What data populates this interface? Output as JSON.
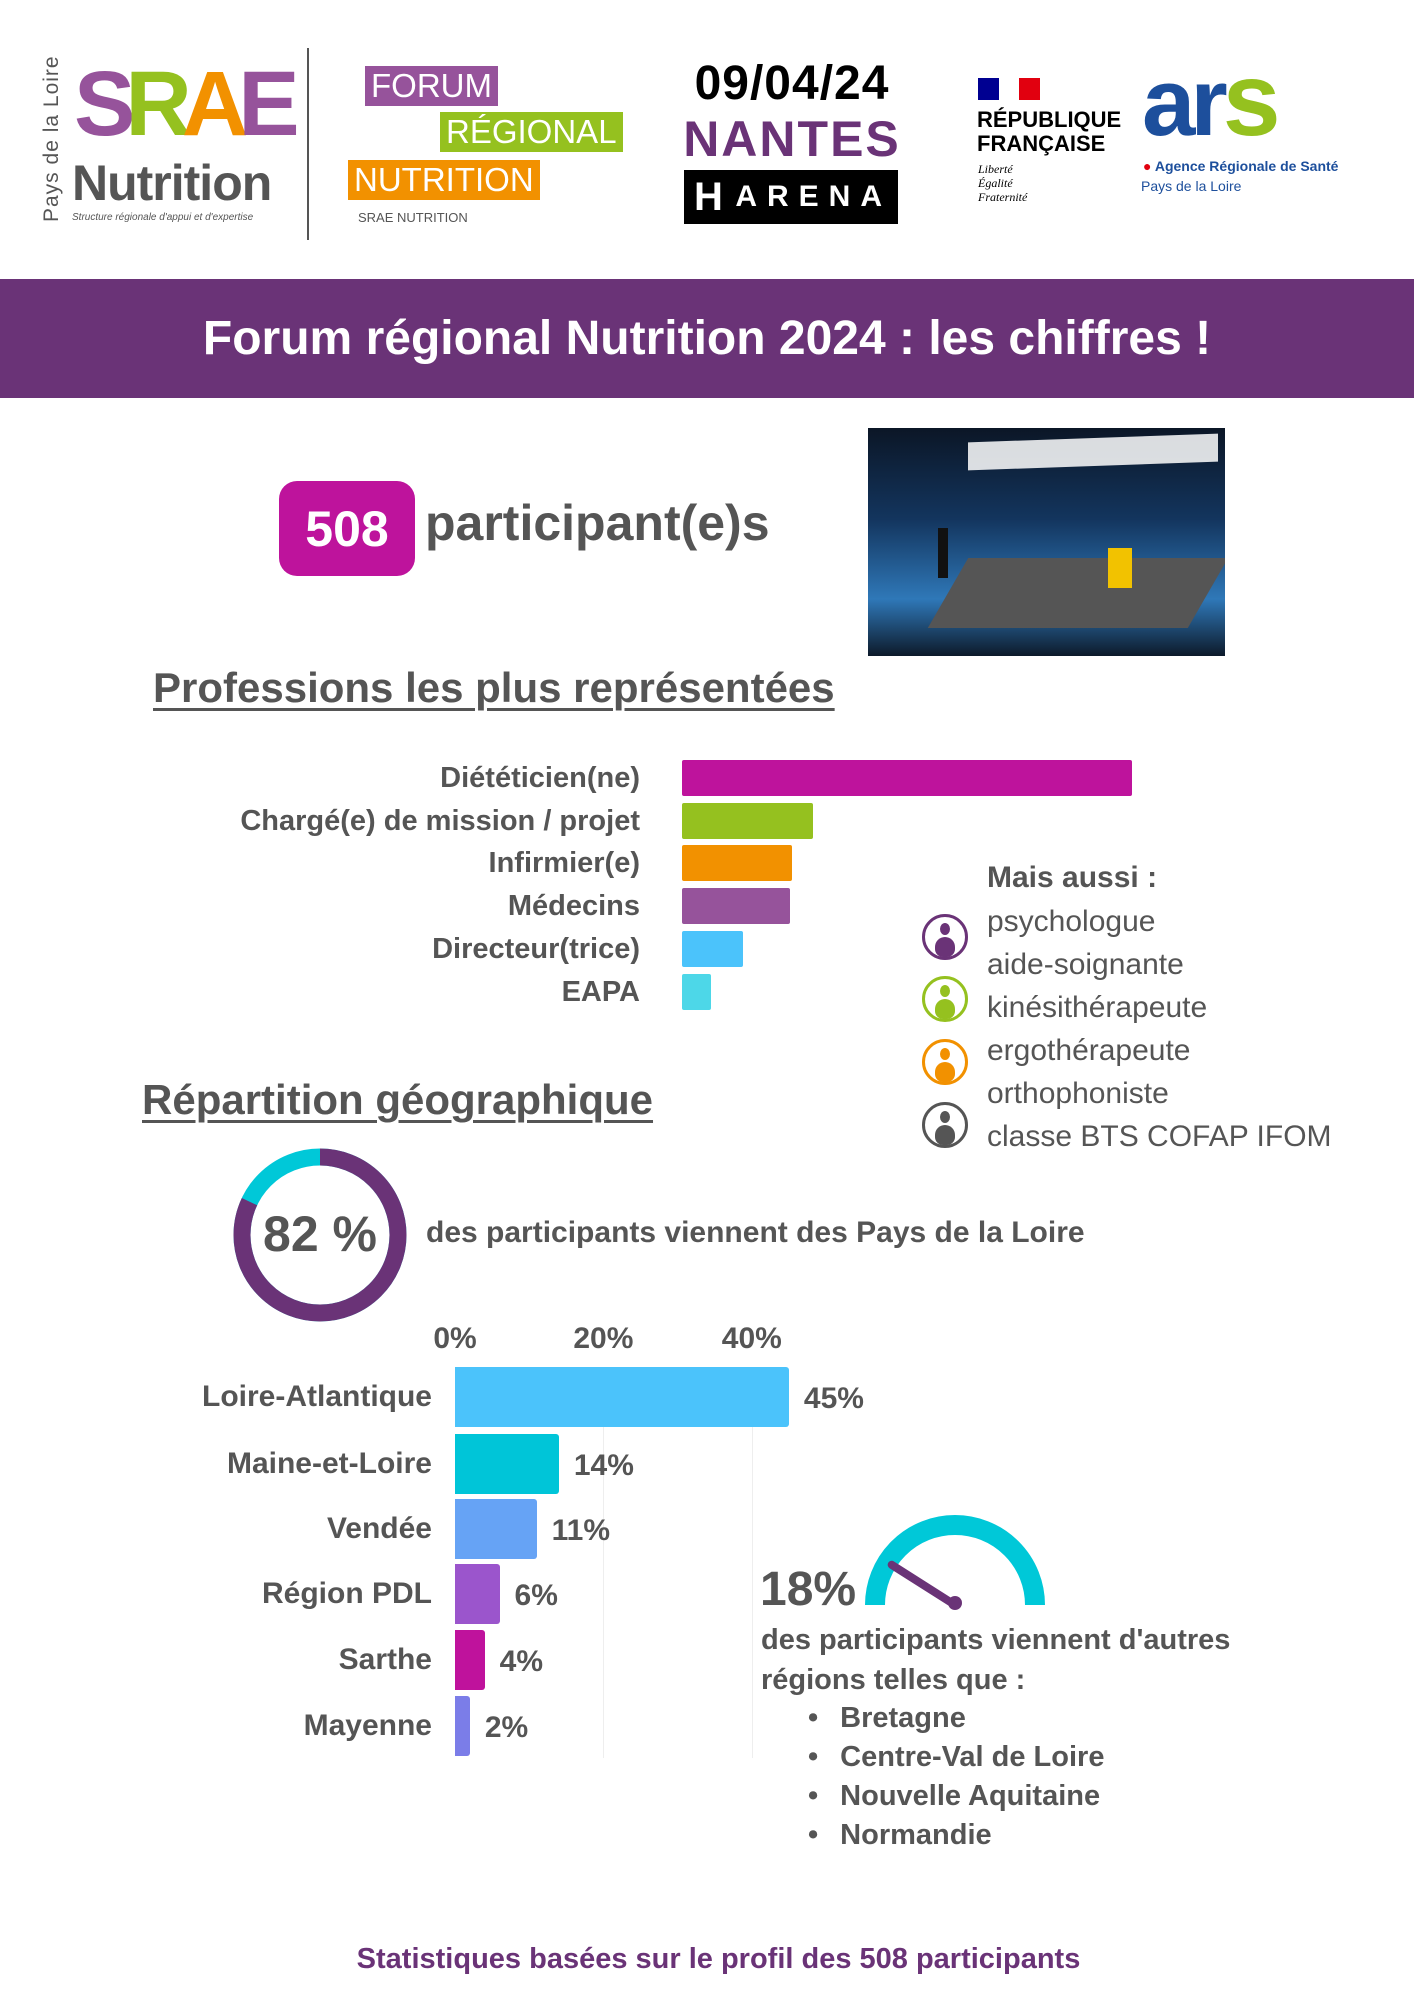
{
  "header": {
    "srae_logo": {
      "region": "Pays de la Loire",
      "mark": "SRAE",
      "name": "Nutrition",
      "tagline": "Structure régionale d'appui et d'expertise"
    },
    "forum_logo": {
      "line1": "FORUM",
      "line2": "RÉGIONAL",
      "line3": "NUTRITION",
      "sub": "SRAE NUTRITION"
    },
    "date": "09/04/24",
    "city": "NANTES",
    "venue": "ARENA",
    "rf_logo": {
      "line1": "RÉPUBLIQUE",
      "line2": "FRANÇAISE",
      "motto1": "Liberté",
      "motto2": "Égalité",
      "motto3": "Fraternité"
    },
    "ars_logo": {
      "mark": "ars",
      "line1": "Agence Régionale de Santé",
      "line2": "Pays de la Loire"
    }
  },
  "banner": {
    "title": "Forum régional Nutrition 2024 : les chiffres !"
  },
  "participants": {
    "count": "508",
    "label": "participant(e)s"
  },
  "professions": {
    "title": "Professions les plus représentées",
    "also_title": "Mais aussi :",
    "also": [
      "psychologue",
      "aide-soignante",
      "kinésithérapeute",
      "ergothérapeute",
      "orthophoniste",
      "classe BTS COFAP IFOM"
    ]
  },
  "geo": {
    "title": "Répartition géographique",
    "pdl_percent": "82 %",
    "pdl_text": "des participants viennent des Pays de la Loire",
    "other_percent": "18%",
    "other_text1": "des participants viennent d'autres",
    "other_text2": "régions telles que :",
    "other_regions": [
      "Bretagne",
      "Centre-Val de Loire",
      "Nouvelle Aquitaine",
      "Normandie"
    ]
  },
  "footer": "Statistiques basées sur le profil des 508 participants",
  "colors": {
    "purple": "#6a3377",
    "magenta": "#be139c",
    "green": "#95c11f",
    "orange": "#f29100",
    "cyan": "#00c8d8"
  },
  "chart_data": [
    {
      "type": "bar",
      "title": "Professions les plus représentées",
      "categories": [
        "Diététicien(ne)",
        "Chargé(e) de mission / projet",
        "Infirmier(e)",
        "Médecins",
        "Directeur(trice)",
        "EAPA"
      ],
      "values": [
        100,
        29,
        24.5,
        24,
        13.5,
        6.5
      ],
      "value_note": "relative length, unlabeled",
      "colors": [
        "#be139c",
        "#95c11f",
        "#f29100",
        "#96539b",
        "#4bc3fb",
        "#4dd7e8"
      ]
    },
    {
      "type": "bar",
      "title": "Répartition géographique",
      "categories": [
        "Loire-Atlantique",
        "Maine-et-Loire",
        "Vendée",
        "Région PDL",
        "Sarthe",
        "Mayenne"
      ],
      "values": [
        45,
        14,
        11,
        6,
        4,
        2
      ],
      "labels": [
        "45%",
        "14%",
        "11%",
        "6%",
        "4%",
        "2%"
      ],
      "xticks": [
        "0%",
        "20%",
        "40%"
      ],
      "xlim": [
        0,
        45
      ],
      "colors": [
        "#4bc3fb",
        "#00c5d8",
        "#66a3f5",
        "#9b55cc",
        "#bf129c",
        "#7b7de8"
      ]
    },
    {
      "type": "pie",
      "title": "Pays de la Loire share",
      "values": [
        82,
        18
      ],
      "colors": [
        "#6a3377",
        "#00c8d8"
      ]
    },
    {
      "type": "gauge",
      "title": "Other regions share",
      "value": 18,
      "range": [
        0,
        100
      ]
    }
  ]
}
